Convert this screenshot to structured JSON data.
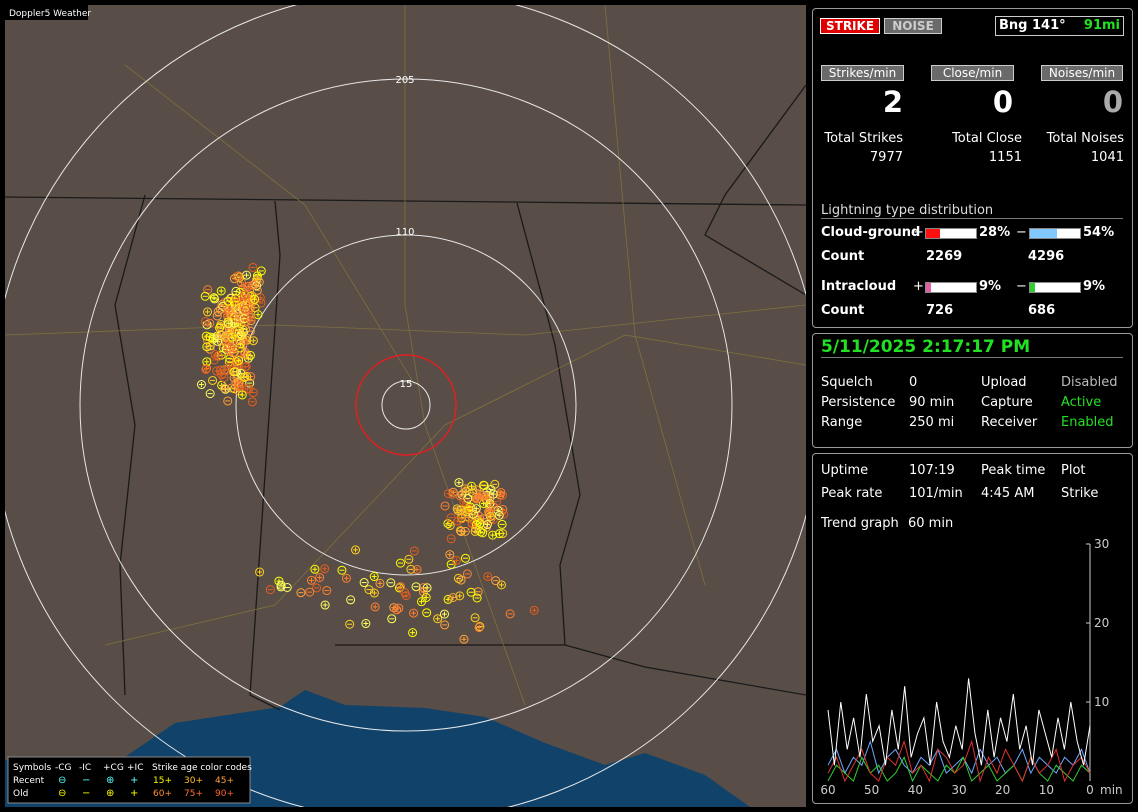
{
  "map": {
    "title": "Doppler5 Weather",
    "ring_labels": [
      "205",
      "110",
      "15"
    ],
    "legend": {
      "symbols_label": "Symbols",
      "columns": [
        "-CG",
        "-IC",
        "+CG",
        "+IC"
      ],
      "rows": [
        "Recent",
        "Old"
      ],
      "age_title": "Strike age color codes",
      "recent_ages": [
        "15+",
        "30+",
        "45+"
      ],
      "old_ages": [
        "60+",
        "75+",
        "90+"
      ]
    }
  },
  "status": {
    "strike": "STRIKE",
    "noise": "NOISE",
    "bearing": "Bng 141°",
    "distance": "91mi"
  },
  "rates": [
    {
      "label": "Strikes/min",
      "value": 2,
      "total_label": "Total Strikes",
      "total": 7977
    },
    {
      "label": "Close/min",
      "value": 0,
      "total_label": "Total Close",
      "total": 1151
    },
    {
      "label": "Noises/min",
      "value": 0,
      "total_label": "Total Noises",
      "total": 1041
    }
  ],
  "distribution": {
    "title": "Lightning type distribution",
    "rows": [
      {
        "label": "Cloud-ground",
        "pos_sign": "+",
        "pos_pct": 28,
        "pos_pct_label": "28%",
        "neg_sign": "−",
        "neg_pct": 54,
        "neg_pct_label": "54%",
        "count_label": "Count",
        "pos_count": 2269,
        "neg_count": 4296
      },
      {
        "label": "Intracloud",
        "pos_sign": "+",
        "pos_pct": 9,
        "pos_pct_label": "9%",
        "neg_sign": "−",
        "neg_pct": 9,
        "neg_pct_label": "9%",
        "count_label": "Count",
        "pos_count": 726,
        "neg_count": 686
      }
    ]
  },
  "datetime": "5/11/2025 2:17:17 PM",
  "settings": [
    [
      "Squelch",
      "0",
      "Upload",
      "Disabled"
    ],
    [
      "Persistence",
      "90 min",
      "Capture",
      "Active"
    ],
    [
      "Range",
      "250 mi",
      "Receiver",
      "Enabled"
    ]
  ],
  "uptime": [
    [
      "Uptime",
      "107:19",
      "Peak time",
      "Plot"
    ],
    [
      "Peak rate",
      "101/min",
      "4:45 AM",
      "Strike"
    ]
  ],
  "trend": {
    "label": "Trend graph",
    "window": "60 min",
    "ylim": [
      0,
      30
    ],
    "yticks": [
      10,
      20,
      30
    ],
    "xlim": [
      60,
      0
    ],
    "xticks": [
      60,
      50,
      40,
      30,
      20,
      10,
      0
    ],
    "x_unit": "min",
    "series": [
      {
        "color": "#ffffff",
        "values": [
          9,
          2,
          10,
          4,
          8,
          3,
          11,
          5,
          7,
          2,
          9,
          4,
          12,
          3,
          6,
          8,
          2,
          10,
          5,
          3,
          7,
          4,
          13,
          6,
          2,
          9,
          3,
          8,
          5,
          11,
          4,
          7,
          2,
          9,
          6,
          3,
          8,
          4,
          10,
          5,
          2,
          7
        ]
      },
      {
        "color": "#e03030",
        "values": [
          1,
          3,
          0,
          2,
          4,
          1,
          0,
          3,
          2,
          5,
          1,
          2,
          0,
          4,
          3,
          1,
          2,
          5,
          0,
          3,
          1,
          4,
          2,
          0,
          3,
          1,
          2,
          4,
          0,
          2,
          3,
          1
        ]
      },
      {
        "color": "#30d030",
        "values": [
          0,
          2,
          1,
          0,
          3,
          1,
          2,
          0,
          1,
          3,
          0,
          2,
          1,
          0,
          2,
          1,
          3,
          0,
          1,
          2,
          0,
          1,
          2,
          0,
          3,
          1,
          0,
          2,
          1,
          0,
          2,
          1
        ]
      },
      {
        "color": "#70a8ff",
        "values": [
          2,
          4,
          1,
          3,
          2,
          5,
          1,
          3,
          4,
          2,
          1,
          3,
          2,
          4,
          1,
          2,
          3,
          1,
          4,
          2,
          3,
          1,
          2,
          4,
          1,
          3,
          2,
          1,
          3,
          2,
          4,
          1
        ]
      }
    ]
  }
}
